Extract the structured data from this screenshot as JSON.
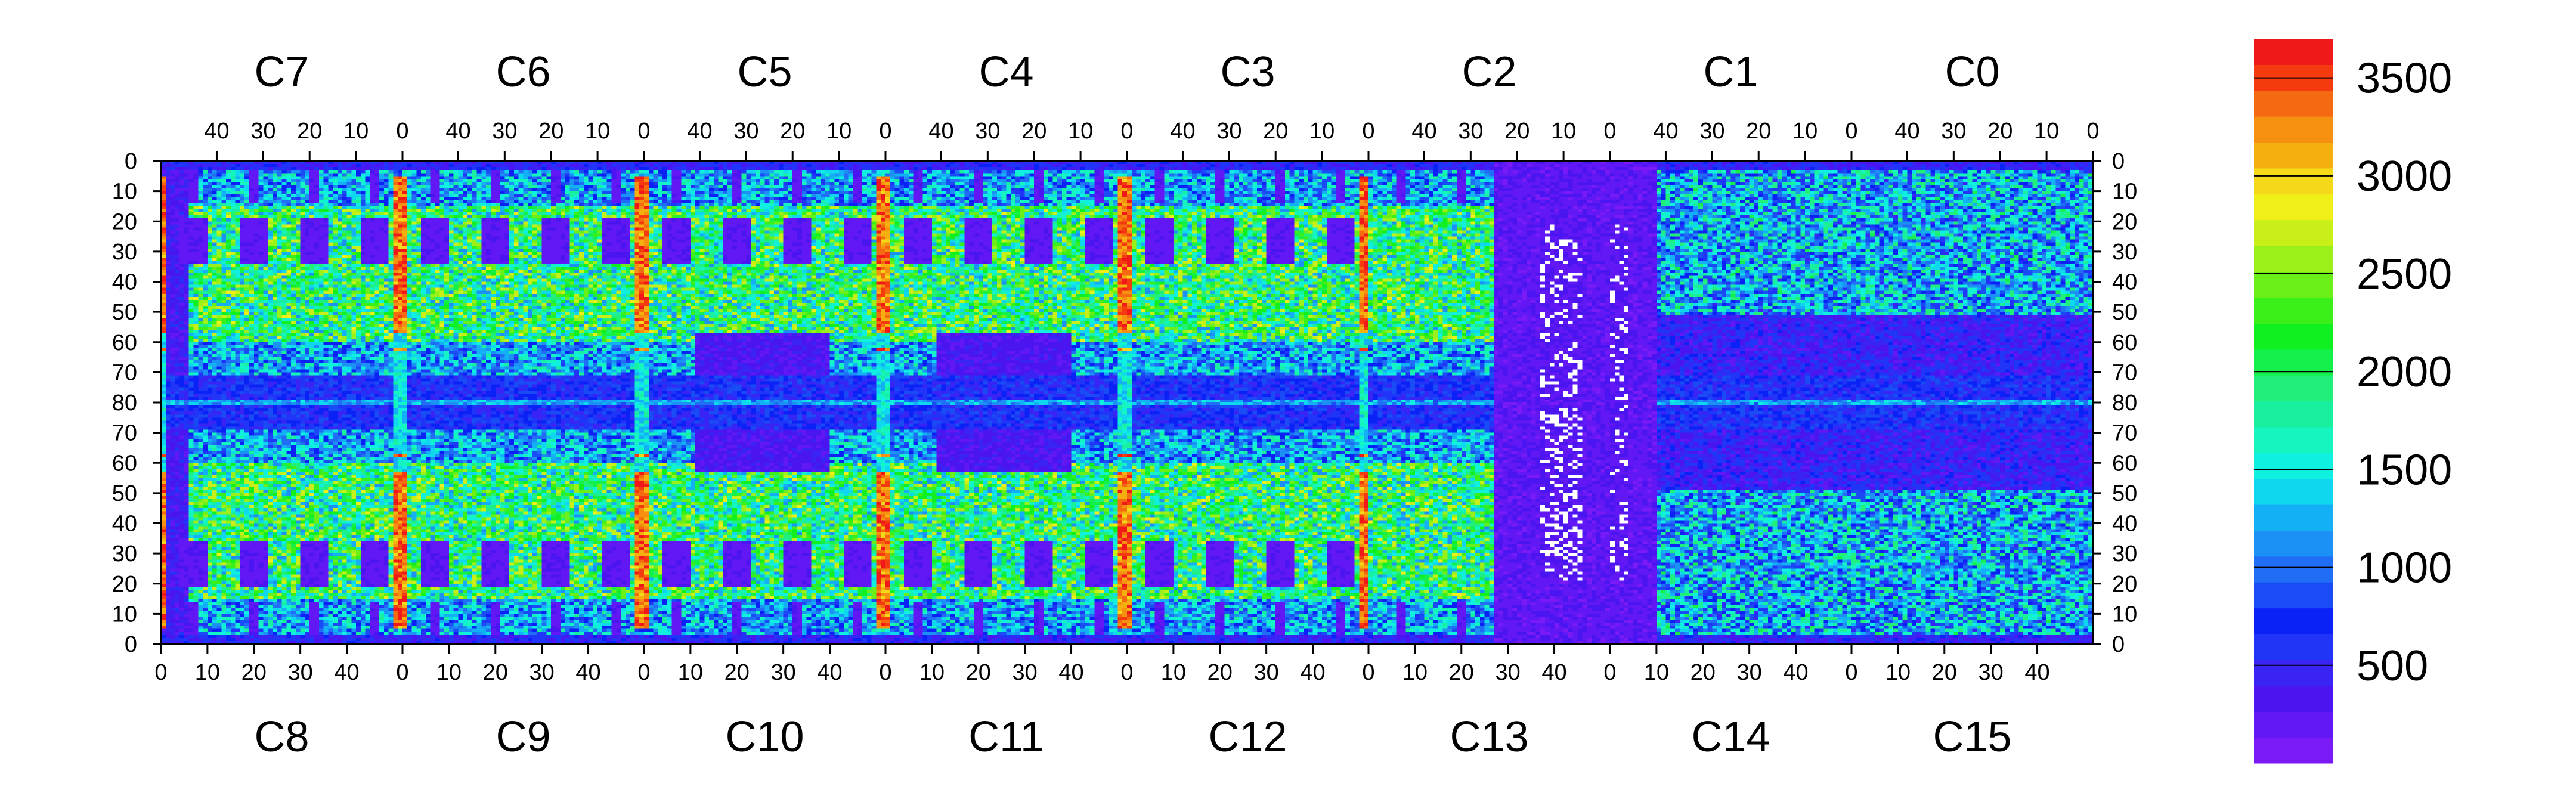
{
  "chart_data": {
    "type": "heatmap",
    "title": "",
    "top_chips": [
      "C7",
      "C6",
      "C5",
      "C4",
      "C3",
      "C2",
      "C1",
      "C0"
    ],
    "bottom_chips": [
      "C8",
      "C9",
      "C10",
      "C11",
      "C12",
      "C13",
      "C14",
      "C15"
    ],
    "chip_columns": 52,
    "rows_per_half": 80,
    "top_x_ticks": [
      "40",
      "30",
      "20",
      "10",
      "0"
    ],
    "bottom_x_ticks": [
      "0",
      "10",
      "20",
      "30",
      "40"
    ],
    "y_ticks_top": [
      "0",
      "10",
      "20",
      "30",
      "40",
      "50",
      "60",
      "70",
      "80"
    ],
    "y_ticks_bottom": [
      "70",
      "60",
      "50",
      "40",
      "30",
      "20",
      "10",
      "0"
    ],
    "zrange": [
      0,
      3700
    ],
    "colorbar_ticks": [
      500,
      1000,
      1500,
      2000,
      2500,
      3000,
      3500
    ],
    "colorbar_tick_labels": [
      "500",
      "1000",
      "1500",
      "2000",
      "2500",
      "3000",
      "3500"
    ],
    "palette": [
      "#7a1bf7",
      "#6218f5",
      "#4a15f0",
      "#3a23f5",
      "#2035f7",
      "#0a22f5",
      "#1a4cf5",
      "#1f6ef5",
      "#1b90f5",
      "#14b0f5",
      "#10d7f0",
      "#10f0e0",
      "#14f5c0",
      "#18f0a0",
      "#20f07a",
      "#14f04a",
      "#10f020",
      "#3af018",
      "#6af018",
      "#9af018",
      "#c8f018",
      "#f0f018",
      "#f5d818",
      "#f5b010",
      "#f59010",
      "#f56a10",
      "#f53a10",
      "#f01818"
    ],
    "stripe_columns_note": "High-value stripes at chip boundaries",
    "description_regions": [
      {
        "chip": "C13",
        "value_level": "low",
        "note": "mostly dead region with scattered white pixels"
      },
      {
        "chip": "C14",
        "value_level": "low"
      },
      {
        "chip": "C15",
        "value_level": "low"
      }
    ]
  }
}
